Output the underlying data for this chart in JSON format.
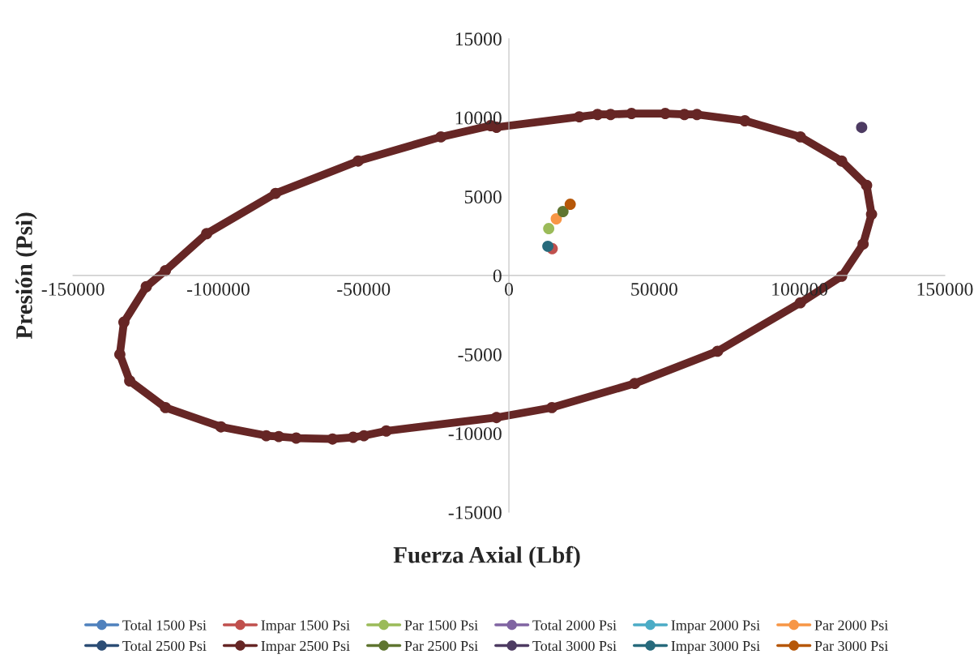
{
  "chart_data": {
    "type": "line",
    "xlabel": "Fuerza Axial (Lbf)",
    "ylabel": "Presión (Psi)",
    "xlim": [
      -150000,
      150000
    ],
    "xticks": [
      -150000,
      -100000,
      -50000,
      0,
      50000,
      100000,
      150000
    ],
    "ylim": [
      -15000,
      15000
    ],
    "yticks": [
      -15000,
      -10000,
      -5000,
      0,
      5000,
      10000,
      15000
    ],
    "grid": false,
    "legend": "bottom",
    "marker": "circle",
    "line_style": "solid",
    "series": [
      {
        "name": "Total 1500 Psi",
        "color": "#4f81bd",
        "x": [
          null
        ],
        "values": [
          null
        ]
      },
      {
        "name": "Impar 1500 Psi",
        "color": "#c0504d",
        "x": [
          14900
        ],
        "values": [
          1700
        ]
      },
      {
        "name": "Par 1500 Psi",
        "color": "#9bbb59",
        "x": [
          13700
        ],
        "values": [
          2970
        ]
      },
      {
        "name": "Total 2000 Psi",
        "color": "#8064a2",
        "x": [
          null
        ],
        "values": [
          null
        ]
      },
      {
        "name": "Impar 2000 Psi",
        "color": "#4bacc6",
        "x": [
          null
        ],
        "values": [
          null
        ]
      },
      {
        "name": "Par 2000 Psi",
        "color": "#f79646",
        "x": [
          16300
        ],
        "values": [
          3590
        ]
      },
      {
        "name": "Total 2500 Psi",
        "color": "#2c4d75",
        "x": [
          null
        ],
        "values": [
          null
        ]
      },
      {
        "name": "Impar 2500 Psi",
        "color": "#662625",
        "x": [
          -4270,
          24200,
          30500,
          35000,
          42200,
          53800,
          60400,
          64700,
          81200,
          100300,
          114500,
          123100,
          124800,
          121900,
          114500,
          100300,
          71800,
          43300,
          14800,
          -4270,
          -42200,
          -49900,
          -53600,
          -60700,
          -73200,
          -79200,
          -83500,
          -99100,
          -118200,
          -130500,
          -133900,
          -132500,
          -124800,
          -118200,
          -104000,
          -80300,
          -51900,
          -23400,
          -6300
        ],
        "values": [
          9390,
          10050,
          10200,
          10200,
          10260,
          10260,
          10200,
          10200,
          9800,
          8780,
          7250,
          5710,
          3880,
          1990,
          -50,
          -1730,
          -4800,
          -6840,
          -8370,
          -9000,
          -9850,
          -10150,
          -10250,
          -10360,
          -10300,
          -10200,
          -10150,
          -9590,
          -8370,
          -6680,
          -5000,
          -2960,
          -710,
          310,
          2650,
          5200,
          7250,
          8780,
          9490
        ]
      },
      {
        "name": "Par 2500 Psi",
        "color": "#5f7530",
        "x": [
          18600
        ],
        "values": [
          4050
        ]
      },
      {
        "name": "Total 3000 Psi",
        "color": "#4d3b62",
        "x": [
          121400
        ],
        "values": [
          9380
        ]
      },
      {
        "name": "Impar 3000 Psi",
        "color": "#276a7c",
        "x": [
          13400
        ],
        "values": [
          1850
        ]
      },
      {
        "name": "Par 3000 Psi",
        "color": "#b65708",
        "x": [
          21100
        ],
        "values": [
          4510
        ]
      }
    ]
  }
}
